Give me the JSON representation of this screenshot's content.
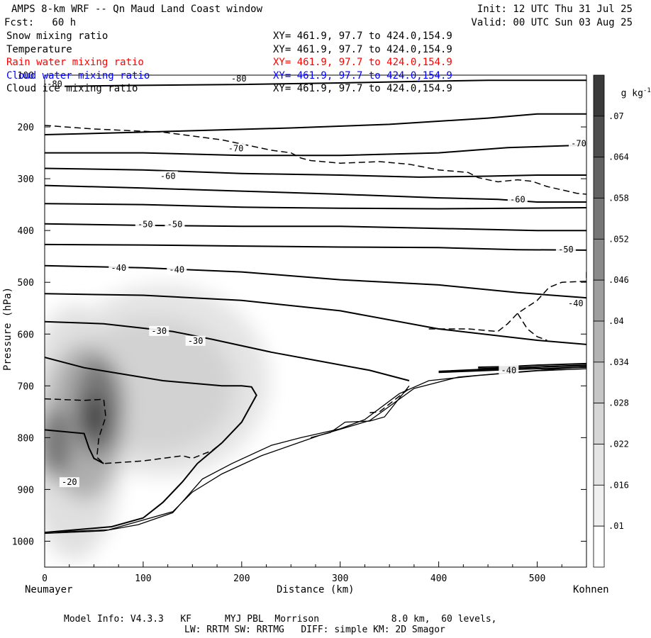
{
  "header": {
    "title": "AMPS 8-km WRF -- Qn Maud Land Coast window",
    "fcst": "Fcst:   60 h",
    "init": "Init: 12 UTC Thu 31 Jul 25",
    "valid": "Valid: 00 UTC Sun 03 Aug 25"
  },
  "fields": [
    {
      "name": "Snow mixing ratio",
      "xy": "XY= 461.9, 97.7 to 424.0,154.9",
      "color": "#000000"
    },
    {
      "name": "Temperature",
      "xy": "XY= 461.9, 97.7 to 424.0,154.9",
      "color": "#000000"
    },
    {
      "name": "Rain water mixing ratio",
      "xy": "XY= 461.9, 97.7 to 424.0,154.9",
      "color": "#ff0000"
    },
    {
      "name": "Cloud water mixing ratio",
      "xy": "XY= 461.9, 97.7 to 424.0,154.9",
      "color": "#0000ff"
    },
    {
      "name": "Cloud ice mixing ratio",
      "xy": "XY= 461.9, 97.7 to 424.0,154.9",
      "color": "#000000"
    }
  ],
  "footer": {
    "line1": "Model Info: V4.3.3   KF      MYJ PBL  Morrison             8.0 km,  60 levels,",
    "line2": "LW: RRTM SW: RRTMG   DIFF: simple KM: 2D Smagor"
  },
  "chart_data": {
    "type": "cross-section contour",
    "xlabel": "Distance (km)",
    "ylabel": "Pressure (hPa)",
    "x_left_label": "Neumayer",
    "x_right_label": "Kohnen",
    "xlim": [
      0,
      550
    ],
    "ylim": [
      1050,
      100
    ],
    "xticks": [
      0,
      100,
      200,
      300,
      400,
      500
    ],
    "yticks": [
      100,
      200,
      300,
      400,
      500,
      600,
      700,
      800,
      900,
      1000
    ],
    "colorbar": {
      "unit": "g kg",
      "unit_exp": "-1",
      "labels": [
        ".07",
        ".064",
        ".058",
        ".052",
        ".046",
        ".04",
        ".034",
        ".028",
        ".022",
        ".016",
        ".01"
      ],
      "values": [
        0.07,
        0.064,
        0.058,
        0.052,
        0.046,
        0.04,
        0.034,
        0.028,
        0.022,
        0.016,
        0.01
      ]
    },
    "snow_max": {
      "x": 50,
      "p": 760,
      "value": 0.07
    },
    "temperature_labels": [
      {
        "text": "-80",
        "x": 0,
        "p": 117
      },
      {
        "text": "-80",
        "x": 187,
        "p": 107
      },
      {
        "text": "-70",
        "x": 184,
        "p": 242
      },
      {
        "text": "-70",
        "x": 532,
        "p": 232
      },
      {
        "text": "-60",
        "x": 115,
        "p": 295
      },
      {
        "text": "-60",
        "x": 470,
        "p": 340
      },
      {
        "text": "-50",
        "x": 92,
        "p": 388
      },
      {
        "text": "-50",
        "x": 122,
        "p": 388
      },
      {
        "text": "-50",
        "x": 519,
        "p": 437
      },
      {
        "text": "-40",
        "x": 65,
        "p": 472
      },
      {
        "text": "-40",
        "x": 124,
        "p": 476
      },
      {
        "text": "-40",
        "x": 529,
        "p": 541
      },
      {
        "text": "-40",
        "x": 461,
        "p": 670
      },
      {
        "text": "-30",
        "x": 106,
        "p": 594
      },
      {
        "text": "-30",
        "x": 143,
        "p": 613
      },
      {
        "text": "-20",
        "x": 15,
        "p": 886
      }
    ],
    "temperature_lines": [
      [
        [
          0,
          122
        ],
        [
          80,
          120
        ],
        [
          200,
          118
        ],
        [
          300,
          115
        ],
        [
          380,
          112
        ],
        [
          450,
          110
        ],
        [
          550,
          110
        ]
      ],
      [
        [
          0,
          215
        ],
        [
          100,
          210
        ],
        [
          250,
          202
        ],
        [
          350,
          195
        ],
        [
          450,
          183
        ],
        [
          500,
          175
        ],
        [
          550,
          175
        ]
      ],
      [
        [
          0,
          250
        ],
        [
          100,
          250
        ],
        [
          200,
          255
        ],
        [
          300,
          255
        ],
        [
          400,
          250
        ],
        [
          470,
          240
        ],
        [
          550,
          235
        ]
      ],
      [
        [
          0,
          280
        ],
        [
          100,
          283
        ],
        [
          200,
          290
        ],
        [
          300,
          293
        ],
        [
          380,
          297
        ],
        [
          450,
          295
        ],
        [
          500,
          293
        ],
        [
          550,
          293
        ]
      ],
      [
        [
          0,
          313
        ],
        [
          100,
          318
        ],
        [
          200,
          324
        ],
        [
          300,
          330
        ],
        [
          400,
          337
        ],
        [
          460,
          340
        ],
        [
          500,
          345
        ],
        [
          550,
          345
        ]
      ],
      [
        [
          0,
          348
        ],
        [
          100,
          350
        ],
        [
          200,
          355
        ],
        [
          300,
          357
        ],
        [
          400,
          358
        ],
        [
          480,
          357
        ],
        [
          550,
          356
        ]
      ],
      [
        [
          0,
          387
        ],
        [
          100,
          390
        ],
        [
          200,
          392
        ],
        [
          300,
          392
        ],
        [
          400,
          396
        ],
        [
          500,
          400
        ],
        [
          550,
          400
        ]
      ],
      [
        [
          0,
          427
        ],
        [
          100,
          428
        ],
        [
          200,
          430
        ],
        [
          300,
          432
        ],
        [
          400,
          433
        ],
        [
          480,
          437
        ],
        [
          550,
          438
        ]
      ],
      [
        [
          0,
          468
        ],
        [
          100,
          472
        ],
        [
          200,
          480
        ],
        [
          300,
          495
        ],
        [
          400,
          505
        ],
        [
          480,
          520
        ],
        [
          550,
          530
        ]
      ],
      [
        [
          0,
          522
        ],
        [
          100,
          525
        ],
        [
          200,
          535
        ],
        [
          300,
          555
        ],
        [
          400,
          590
        ],
        [
          500,
          612
        ],
        [
          550,
          620
        ]
      ],
      [
        [
          0,
          576
        ],
        [
          60,
          580
        ],
        [
          130,
          595
        ],
        [
          170,
          610
        ],
        [
          230,
          635
        ],
        [
          330,
          670
        ],
        [
          370,
          690
        ]
      ],
      [
        [
          0,
          645
        ],
        [
          40,
          665
        ],
        [
          120,
          690
        ],
        [
          180,
          700
        ],
        [
          200,
          700
        ],
        [
          210,
          702
        ],
        [
          215,
          718
        ],
        [
          200,
          770
        ],
        [
          180,
          810
        ],
        [
          155,
          850
        ],
        [
          140,
          885
        ],
        [
          120,
          925
        ],
        [
          100,
          955
        ],
        [
          68,
          972
        ],
        [
          0,
          983
        ]
      ],
      [
        [
          0,
          785
        ],
        [
          40,
          792
        ],
        [
          45,
          820
        ],
        [
          50,
          840
        ],
        [
          60,
          850
        ]
      ],
      [
        [
          440,
          664
        ],
        [
          470,
          663
        ],
        [
          500,
          660
        ],
        [
          550,
          657
        ]
      ],
      [
        [
          440,
          667
        ],
        [
          480,
          665
        ],
        [
          520,
          662
        ],
        [
          550,
          660
        ]
      ],
      [
        [
          400,
          672
        ],
        [
          470,
          666
        ],
        [
          510,
          663
        ],
        [
          550,
          661
        ]
      ],
      [
        [
          400,
          674
        ],
        [
          480,
          668
        ],
        [
          550,
          664
        ]
      ]
    ],
    "terrain_lines": [
      [
        [
          0,
          985
        ],
        [
          60,
          980
        ],
        [
          95,
          968
        ],
        [
          130,
          945
        ],
        [
          160,
          880
        ],
        [
          190,
          850
        ],
        [
          230,
          815
        ],
        [
          260,
          800
        ],
        [
          300,
          783
        ],
        [
          325,
          765
        ],
        [
          360,
          715
        ],
        [
          390,
          690
        ],
        [
          440,
          680
        ],
        [
          500,
          671
        ],
        [
          550,
          667
        ]
      ],
      [
        [
          0,
          983
        ],
        [
          65,
          978
        ],
        [
          130,
          943
        ],
        [
          150,
          905
        ],
        [
          180,
          870
        ],
        [
          220,
          835
        ],
        [
          280,
          795
        ],
        [
          330,
          767
        ],
        [
          375,
          705
        ],
        [
          420,
          683
        ],
        [
          480,
          673
        ],
        [
          550,
          663
        ]
      ],
      [
        [
          270,
          800
        ],
        [
          290,
          790
        ],
        [
          305,
          770
        ],
        [
          330,
          768
        ],
        [
          345,
          760
        ],
        [
          370,
          700
        ]
      ]
    ],
    "dashed_lines": [
      [
        [
          0,
          197
        ],
        [
          50,
          204
        ],
        [
          120,
          210
        ],
        [
          180,
          225
        ],
        [
          230,
          245
        ],
        [
          250,
          250
        ],
        [
          260,
          260
        ],
        [
          270,
          265
        ],
        [
          300,
          270
        ],
        [
          340,
          267
        ],
        [
          370,
          272
        ],
        [
          400,
          283
        ],
        [
          430,
          288
        ],
        [
          440,
          298
        ],
        [
          460,
          306
        ],
        [
          480,
          302
        ],
        [
          495,
          305
        ],
        [
          510,
          315
        ],
        [
          540,
          328
        ],
        [
          550,
          330
        ]
      ],
      [
        [
          0,
          725
        ],
        [
          40,
          728
        ],
        [
          60,
          726
        ],
        [
          62,
          760
        ],
        [
          55,
          800
        ],
        [
          53,
          838
        ],
        [
          60,
          850
        ],
        [
          100,
          845
        ],
        [
          140,
          835
        ],
        [
          150,
          840
        ],
        [
          170,
          825
        ],
        [
          180,
          810
        ]
      ],
      [
        [
          390,
          590
        ],
        [
          430,
          590
        ],
        [
          460,
          595
        ],
        [
          470,
          580
        ],
        [
          480,
          560
        ],
        [
          500,
          535
        ],
        [
          512,
          510
        ],
        [
          525,
          500
        ],
        [
          550,
          498
        ],
        [
          550,
          480
        ]
      ],
      [
        [
          480,
          560
        ],
        [
          490,
          590
        ],
        [
          500,
          605
        ],
        [
          510,
          612
        ]
      ],
      [
        [
          330,
          752
        ],
        [
          340,
          750
        ],
        [
          350,
          735
        ],
        [
          360,
          720
        ],
        [
          370,
          705
        ]
      ]
    ]
  }
}
